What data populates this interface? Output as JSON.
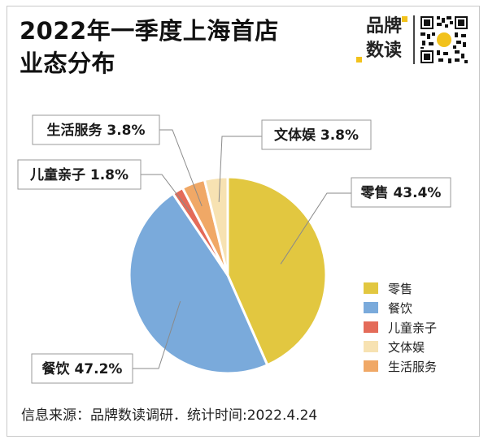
{
  "title": {
    "line1": "2022年一季度上海首店",
    "line2": "业态分布"
  },
  "brand": {
    "line1": "品牌",
    "line2": "数读"
  },
  "chart_data": {
    "type": "pie",
    "title": "2022年一季度上海首店业态分布",
    "unit": "%",
    "slices": [
      {
        "name": "零售",
        "value": 43.4,
        "label": "零售  43.4%",
        "color": "#e2c740"
      },
      {
        "name": "餐饮",
        "value": 47.2,
        "label": "餐饮  47.2%",
        "color": "#7aaadb"
      },
      {
        "name": "儿童亲子",
        "value": 1.8,
        "label": "儿童亲子  1.8%",
        "color": "#e46b59"
      },
      {
        "name": "生活服务",
        "value": 3.8,
        "label": "生活服务  3.8%",
        "color": "#f0a866"
      },
      {
        "name": "文体娱",
        "value": 3.8,
        "label": "文体娱  3.8%",
        "color": "#f7e2b2"
      }
    ],
    "legend": [
      {
        "name": "零售",
        "color": "#e2c740"
      },
      {
        "name": "餐饮",
        "color": "#7aaadb"
      },
      {
        "name": "儿童亲子",
        "color": "#e46b59"
      },
      {
        "name": "文体娱",
        "color": "#f7e2b2"
      },
      {
        "name": "生活服务",
        "color": "#f0a866"
      }
    ],
    "legend_position": "right"
  },
  "footer": "信息来源：品牌数读调研．统计时间:2022.4.24"
}
